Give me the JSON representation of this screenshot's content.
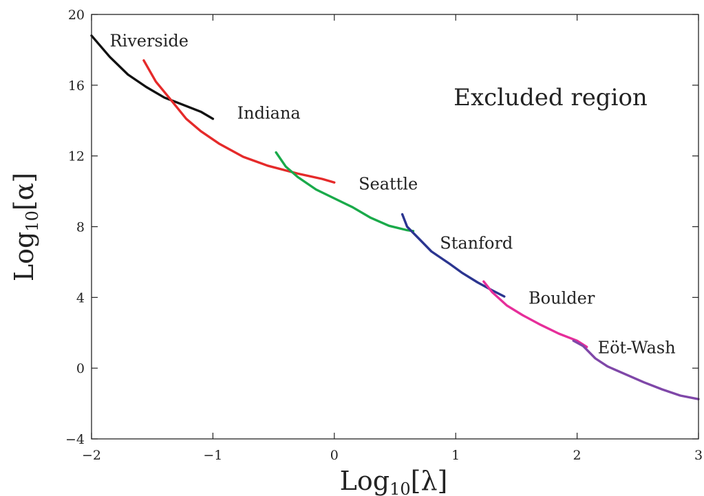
{
  "chart_data": {
    "type": "line",
    "xlim": [
      -2,
      3
    ],
    "ylim": [
      -4,
      20
    ],
    "xticks": [
      -2,
      -1,
      0,
      1,
      2,
      3
    ],
    "yticks": [
      -4,
      0,
      4,
      8,
      12,
      16,
      20
    ],
    "xtick_labels": [
      "−2",
      "−1",
      "0",
      "1",
      "2",
      "3"
    ],
    "ytick_labels": [
      "−4",
      "0",
      "4",
      "8",
      "12",
      "16",
      "20"
    ],
    "xlabel": {
      "base": "Log",
      "sub": "10",
      "arg": "[λ]"
    },
    "ylabel": {
      "base": "Log",
      "sub": "10",
      "arg": "[α]"
    },
    "annotation": "Excluded region",
    "grid": false,
    "series": [
      {
        "name": "Riverside",
        "color": "#111111",
        "label_pos": [
          -1.85,
          18.2
        ],
        "points": [
          [
            -2.0,
            18.8
          ],
          [
            -1.85,
            17.6
          ],
          [
            -1.7,
            16.6
          ],
          [
            -1.55,
            15.9
          ],
          [
            -1.4,
            15.3
          ],
          [
            -1.25,
            14.9
          ],
          [
            -1.1,
            14.5
          ],
          [
            -1.0,
            14.1
          ]
        ]
      },
      {
        "name": "Indiana",
        "color": "#e52a2a",
        "label_pos": [
          -0.8,
          14.1
        ],
        "points": [
          [
            -1.57,
            17.4
          ],
          [
            -1.47,
            16.2
          ],
          [
            -1.35,
            15.2
          ],
          [
            -1.22,
            14.1
          ],
          [
            -1.1,
            13.4
          ],
          [
            -0.95,
            12.7
          ],
          [
            -0.75,
            11.95
          ],
          [
            -0.55,
            11.45
          ],
          [
            -0.3,
            11.0
          ],
          [
            -0.1,
            10.7
          ],
          [
            0.0,
            10.5
          ]
        ]
      },
      {
        "name": "Seattle",
        "color": "#1aaa4a",
        "label_pos": [
          0.2,
          10.1
        ],
        "points": [
          [
            -0.48,
            12.2
          ],
          [
            -0.4,
            11.4
          ],
          [
            -0.3,
            10.8
          ],
          [
            -0.15,
            10.1
          ],
          [
            0.0,
            9.6
          ],
          [
            0.15,
            9.1
          ],
          [
            0.3,
            8.5
          ],
          [
            0.45,
            8.05
          ],
          [
            0.6,
            7.8
          ],
          [
            0.65,
            7.75
          ]
        ]
      },
      {
        "name": "Stanford",
        "color": "#2b3590",
        "label_pos": [
          0.87,
          6.75
        ],
        "points": [
          [
            0.56,
            8.7
          ],
          [
            0.6,
            8.0
          ],
          [
            0.7,
            7.3
          ],
          [
            0.8,
            6.6
          ],
          [
            0.95,
            5.9
          ],
          [
            1.05,
            5.4
          ],
          [
            1.18,
            4.85
          ],
          [
            1.3,
            4.4
          ],
          [
            1.4,
            4.05
          ]
        ]
      },
      {
        "name": "Boulder",
        "color": "#e62e9a",
        "label_pos": [
          1.6,
          3.65
        ],
        "points": [
          [
            1.23,
            4.9
          ],
          [
            1.3,
            4.3
          ],
          [
            1.42,
            3.55
          ],
          [
            1.55,
            3.0
          ],
          [
            1.7,
            2.45
          ],
          [
            1.85,
            1.95
          ],
          [
            2.0,
            1.55
          ],
          [
            2.08,
            1.2
          ]
        ]
      },
      {
        "name": "Eöt-Wash",
        "color": "#7f47a8",
        "label_pos": [
          2.17,
          0.85
        ],
        "points": [
          [
            1.97,
            1.55
          ],
          [
            2.05,
            1.25
          ],
          [
            2.15,
            0.55
          ],
          [
            2.25,
            0.1
          ],
          [
            2.4,
            -0.35
          ],
          [
            2.55,
            -0.8
          ],
          [
            2.7,
            -1.2
          ],
          [
            2.85,
            -1.55
          ],
          [
            3.0,
            -1.75
          ]
        ]
      }
    ]
  }
}
